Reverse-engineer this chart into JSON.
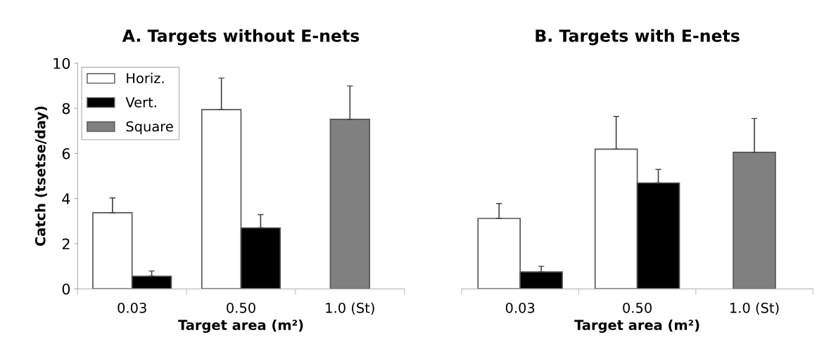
{
  "chart_data": [
    {
      "type": "bar",
      "title": "A. Targets without E-nets",
      "xlabel": "Target area (m²)",
      "ylabel": "Catch (tsetse/day)",
      "categories": [
        "0.03",
        "0.50",
        "1.0 (St)"
      ],
      "series": [
        {
          "name": "Horiz.",
          "color": "#ffffff",
          "values": [
            3.37,
            7.94,
            null
          ],
          "errors": [
            [
              3.37,
              4.03
            ],
            [
              7.94,
              9.34
            ],
            null
          ]
        },
        {
          "name": "Vert.",
          "color": "#000000",
          "values": [
            0.56,
            2.7,
            null
          ],
          "errors": [
            [
              0.56,
              0.79
            ],
            [
              2.7,
              3.29
            ],
            null
          ]
        },
        {
          "name": "Square",
          "color": "#808080",
          "values": [
            null,
            null,
            7.51
          ],
          "errors": [
            null,
            null,
            [
              7.51,
              8.99
            ]
          ]
        }
      ],
      "ylim": [
        0,
        10
      ],
      "yticks": [
        0,
        2,
        4,
        6,
        8,
        10
      ],
      "grid": false,
      "legend": "top left"
    },
    {
      "type": "bar",
      "title": "B. Targets with E-nets",
      "xlabel": "Target area (m²)",
      "categories": [
        "0.03",
        "0.50",
        "1.0 (St)"
      ],
      "series": [
        {
          "color": "#ffffff",
          "values": [
            3.12,
            6.19,
            null
          ],
          "errors": [
            [
              3.12,
              3.78
            ],
            [
              6.19,
              7.64
            ],
            null
          ]
        },
        {
          "color": "#000000",
          "values": [
            0.75,
            4.69,
            null
          ],
          "errors": [
            [
              0.75,
              1.0
            ],
            [
              4.69,
              5.29
            ],
            null
          ]
        },
        {
          "color": "#808080",
          "values": [
            null,
            null,
            6.05
          ],
          "errors": [
            null,
            null,
            [
              6.05,
              7.55
            ]
          ]
        }
      ],
      "ylim": [
        0,
        10
      ],
      "yticks": [
        0,
        2,
        4,
        6,
        8,
        10
      ],
      "grid": false,
      "tick_labels": "x",
      "legend": false
    }
  ]
}
